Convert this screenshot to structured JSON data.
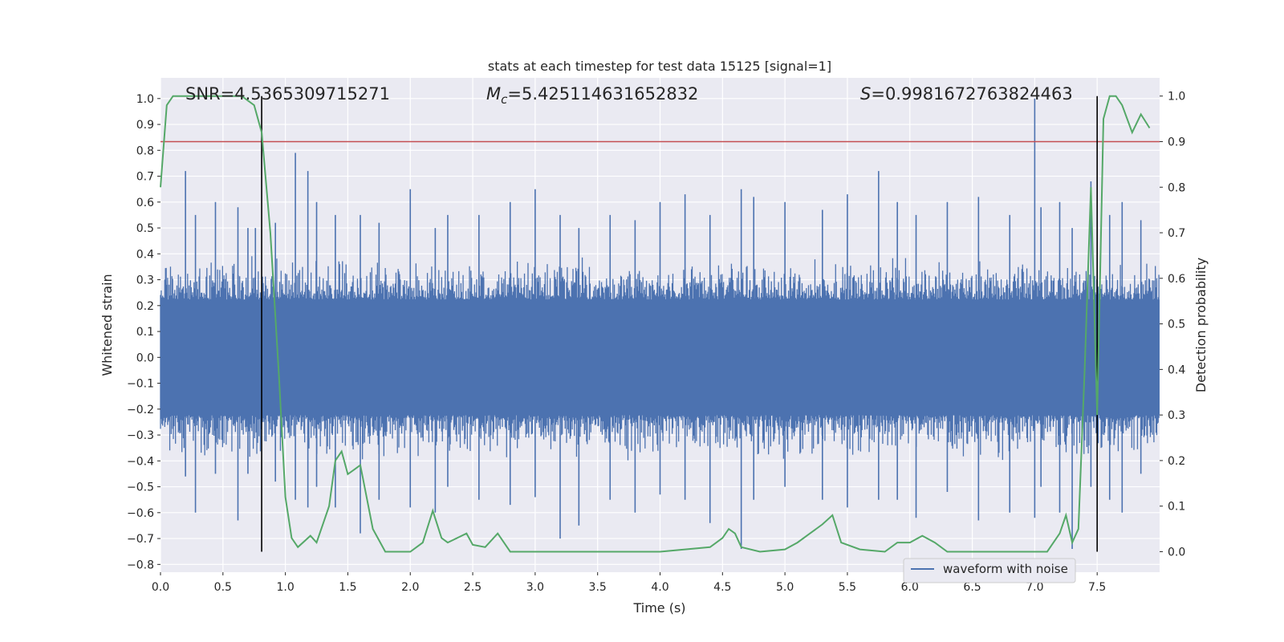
{
  "chart_data": {
    "type": "line",
    "title": "stats at each timestep for test data 15125 [signal=1]",
    "xlabel": "Time (s)",
    "ylabel": "Whitened strain",
    "y2label": "Detection probability",
    "xlim": [
      0,
      8
    ],
    "ylim": [
      -0.83,
      1.08
    ],
    "y2lim": [
      -0.045,
      1.04
    ],
    "x_ticks": [
      "0.0",
      "0.5",
      "1.0",
      "1.5",
      "2.0",
      "2.5",
      "3.0",
      "3.5",
      "4.0",
      "4.5",
      "5.0",
      "5.5",
      "6.0",
      "6.5",
      "7.0",
      "7.5"
    ],
    "y_ticks": [
      "1.0",
      "0.9",
      "0.8",
      "0.7",
      "0.6",
      "0.5",
      "0.4",
      "0.3",
      "0.2",
      "0.1",
      "0.0",
      "−0.1",
      "−0.2",
      "−0.3",
      "−0.4",
      "−0.5",
      "−0.6",
      "−0.7",
      "−0.8"
    ],
    "y2_ticks": [
      "1.0",
      "0.9",
      "0.8",
      "0.7",
      "0.6",
      "0.5",
      "0.4",
      "0.3",
      "0.2",
      "0.1",
      "0.0"
    ],
    "grid": true,
    "legend_position": "bottom-right",
    "annotations": {
      "snr": "SNR=4.5365309715271",
      "mc_symbol": "M",
      "mc_sub": "c",
      "mc_value": "=5.425114631652832",
      "s_symbol": "S",
      "s_value": "=0.9981672763824463"
    },
    "threshold": 0.9,
    "vlines": [
      0.81,
      7.5
    ],
    "strain_series": {
      "name": "waveform with noise",
      "color": "#4c72b0",
      "band": 0.31,
      "spikes": [
        [
          0.2,
          0.72,
          -0.46
        ],
        [
          0.28,
          0.55,
          -0.6
        ],
        [
          0.44,
          0.6,
          -0.45
        ],
        [
          0.62,
          0.58,
          -0.63
        ],
        [
          0.7,
          0.5,
          -0.45
        ],
        [
          0.76,
          0.5,
          -0.1
        ],
        [
          0.92,
          0.52,
          -0.48
        ],
        [
          1.08,
          0.79,
          -0.55
        ],
        [
          1.18,
          0.72,
          -0.58
        ],
        [
          1.25,
          0.6,
          -0.5
        ],
        [
          1.4,
          0.55,
          -0.58
        ],
        [
          1.6,
          0.55,
          -0.68
        ],
        [
          1.75,
          0.52,
          -0.55
        ],
        [
          2.0,
          0.65,
          -0.58
        ],
        [
          2.2,
          0.5,
          -0.6
        ],
        [
          2.3,
          0.55,
          -0.5
        ],
        [
          2.55,
          0.55,
          -0.55
        ],
        [
          2.8,
          0.6,
          -0.57
        ],
        [
          3.0,
          0.65,
          -0.54
        ],
        [
          3.2,
          0.55,
          -0.7
        ],
        [
          3.35,
          0.5,
          -0.65
        ],
        [
          3.6,
          0.55,
          -0.55
        ],
        [
          3.8,
          0.53,
          -0.6
        ],
        [
          4.0,
          0.6,
          -0.53
        ],
        [
          4.2,
          0.63,
          -0.55
        ],
        [
          4.4,
          0.55,
          -0.64
        ],
        [
          4.65,
          0.65,
          -0.74
        ],
        [
          4.75,
          0.62,
          -0.55
        ],
        [
          5.0,
          0.6,
          -0.5
        ],
        [
          5.3,
          0.57,
          -0.55
        ],
        [
          5.5,
          0.63,
          -0.58
        ],
        [
          5.75,
          0.72,
          -0.55
        ],
        [
          5.9,
          0.6,
          -0.55
        ],
        [
          6.05,
          0.55,
          -0.62
        ],
        [
          6.3,
          0.6,
          -0.52
        ],
        [
          6.55,
          0.62,
          -0.63
        ],
        [
          6.8,
          0.55,
          -0.6
        ],
        [
          7.0,
          1.0,
          -0.62
        ],
        [
          7.05,
          0.58,
          -0.5
        ],
        [
          7.2,
          0.6,
          -0.6
        ],
        [
          7.3,
          0.5,
          -0.74
        ],
        [
          7.45,
          0.68,
          -0.5
        ],
        [
          7.6,
          0.55,
          -0.55
        ],
        [
          7.7,
          0.6,
          -0.6
        ],
        [
          7.85,
          0.53,
          -0.45
        ]
      ]
    },
    "probability_series": {
      "color": "#55a868",
      "points": [
        [
          0,
          0.8
        ],
        [
          0.05,
          0.98
        ],
        [
          0.1,
          1.0
        ],
        [
          0.3,
          1.0
        ],
        [
          0.5,
          1.0
        ],
        [
          0.65,
          1.0
        ],
        [
          0.75,
          0.98
        ],
        [
          0.81,
          0.92
        ],
        [
          0.88,
          0.7
        ],
        [
          0.95,
          0.38
        ],
        [
          1.0,
          0.12
        ],
        [
          1.05,
          0.03
        ],
        [
          1.1,
          0.01
        ],
        [
          1.2,
          0.035
        ],
        [
          1.25,
          0.02
        ],
        [
          1.3,
          0.06
        ],
        [
          1.35,
          0.1
        ],
        [
          1.4,
          0.2
        ],
        [
          1.45,
          0.22
        ],
        [
          1.5,
          0.17
        ],
        [
          1.55,
          0.18
        ],
        [
          1.6,
          0.19
        ],
        [
          1.65,
          0.12
        ],
        [
          1.7,
          0.05
        ],
        [
          1.8,
          0.0
        ],
        [
          2.0,
          0.0
        ],
        [
          2.1,
          0.02
        ],
        [
          2.18,
          0.09
        ],
        [
          2.25,
          0.03
        ],
        [
          2.3,
          0.02
        ],
        [
          2.45,
          0.04
        ],
        [
          2.5,
          0.015
        ],
        [
          2.6,
          0.01
        ],
        [
          2.7,
          0.04
        ],
        [
          2.8,
          0.0
        ],
        [
          3.0,
          0.0
        ],
        [
          3.5,
          0.0
        ],
        [
          4.0,
          0.0
        ],
        [
          4.4,
          0.01
        ],
        [
          4.5,
          0.03
        ],
        [
          4.55,
          0.05
        ],
        [
          4.6,
          0.04
        ],
        [
          4.65,
          0.01
        ],
        [
          4.8,
          0.0
        ],
        [
          5.0,
          0.005
        ],
        [
          5.1,
          0.02
        ],
        [
          5.2,
          0.04
        ],
        [
          5.3,
          0.06
        ],
        [
          5.38,
          0.08
        ],
        [
          5.45,
          0.02
        ],
        [
          5.6,
          0.005
        ],
        [
          5.8,
          0.0
        ],
        [
          5.9,
          0.02
        ],
        [
          6.0,
          0.02
        ],
        [
          6.1,
          0.035
        ],
        [
          6.2,
          0.02
        ],
        [
          6.3,
          0.0
        ],
        [
          6.6,
          0.0
        ],
        [
          7.0,
          0.0
        ],
        [
          7.1,
          0.0
        ],
        [
          7.2,
          0.04
        ],
        [
          7.25,
          0.08
        ],
        [
          7.3,
          0.02
        ],
        [
          7.35,
          0.05
        ],
        [
          7.4,
          0.4
        ],
        [
          7.45,
          0.8
        ],
        [
          7.5,
          0.3
        ],
        [
          7.55,
          0.95
        ],
        [
          7.6,
          1.0
        ],
        [
          7.65,
          1.0
        ],
        [
          7.7,
          0.98
        ],
        [
          7.78,
          0.92
        ],
        [
          7.85,
          0.96
        ],
        [
          7.92,
          0.93
        ]
      ]
    }
  }
}
